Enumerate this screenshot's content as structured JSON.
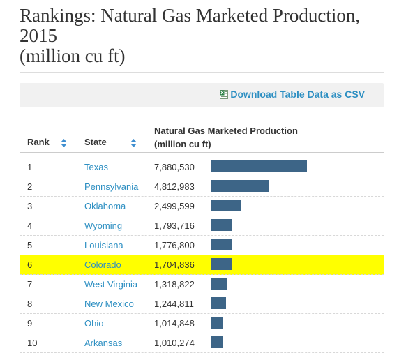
{
  "title": {
    "line1": "Rankings: Natural Gas Marketed Production,",
    "line2": "2015",
    "line3": "(million cu ft)"
  },
  "csv_link": {
    "label": "Download Table Data as CSV",
    "icon": "excel-file-icon"
  },
  "table": {
    "headers": {
      "rank": "Rank",
      "state": "State",
      "production_line1": "Natural Gas Marketed Production",
      "production_line2": "(million cu ft)"
    },
    "sort_icon": "sort-arrows-icon",
    "bar_color": "#3d6587",
    "highlight_color": "#ffff00",
    "highlighted_rank": "6",
    "rows": [
      {
        "rank": "1",
        "state": "Texas",
        "value": "7,880,530",
        "amount": 7880530
      },
      {
        "rank": "2",
        "state": "Pennsylvania",
        "value": "4,812,983",
        "amount": 4812983
      },
      {
        "rank": "3",
        "state": "Oklahoma",
        "value": "2,499,599",
        "amount": 2499599
      },
      {
        "rank": "4",
        "state": "Wyoming",
        "value": "1,793,716",
        "amount": 1793716
      },
      {
        "rank": "5",
        "state": "Louisiana",
        "value": "1,776,800",
        "amount": 1776800
      },
      {
        "rank": "6",
        "state": "Colorado",
        "value": "1,704,836",
        "amount": 1704836
      },
      {
        "rank": "7",
        "state": "West Virginia",
        "value": "1,318,822",
        "amount": 1318822
      },
      {
        "rank": "8",
        "state": "New Mexico",
        "value": "1,244,811",
        "amount": 1244811
      },
      {
        "rank": "9",
        "state": "Ohio",
        "value": "1,014,848",
        "amount": 1014848
      },
      {
        "rank": "10",
        "state": "Arkansas",
        "value": "1,010,274",
        "amount": 1010274
      }
    ]
  }
}
